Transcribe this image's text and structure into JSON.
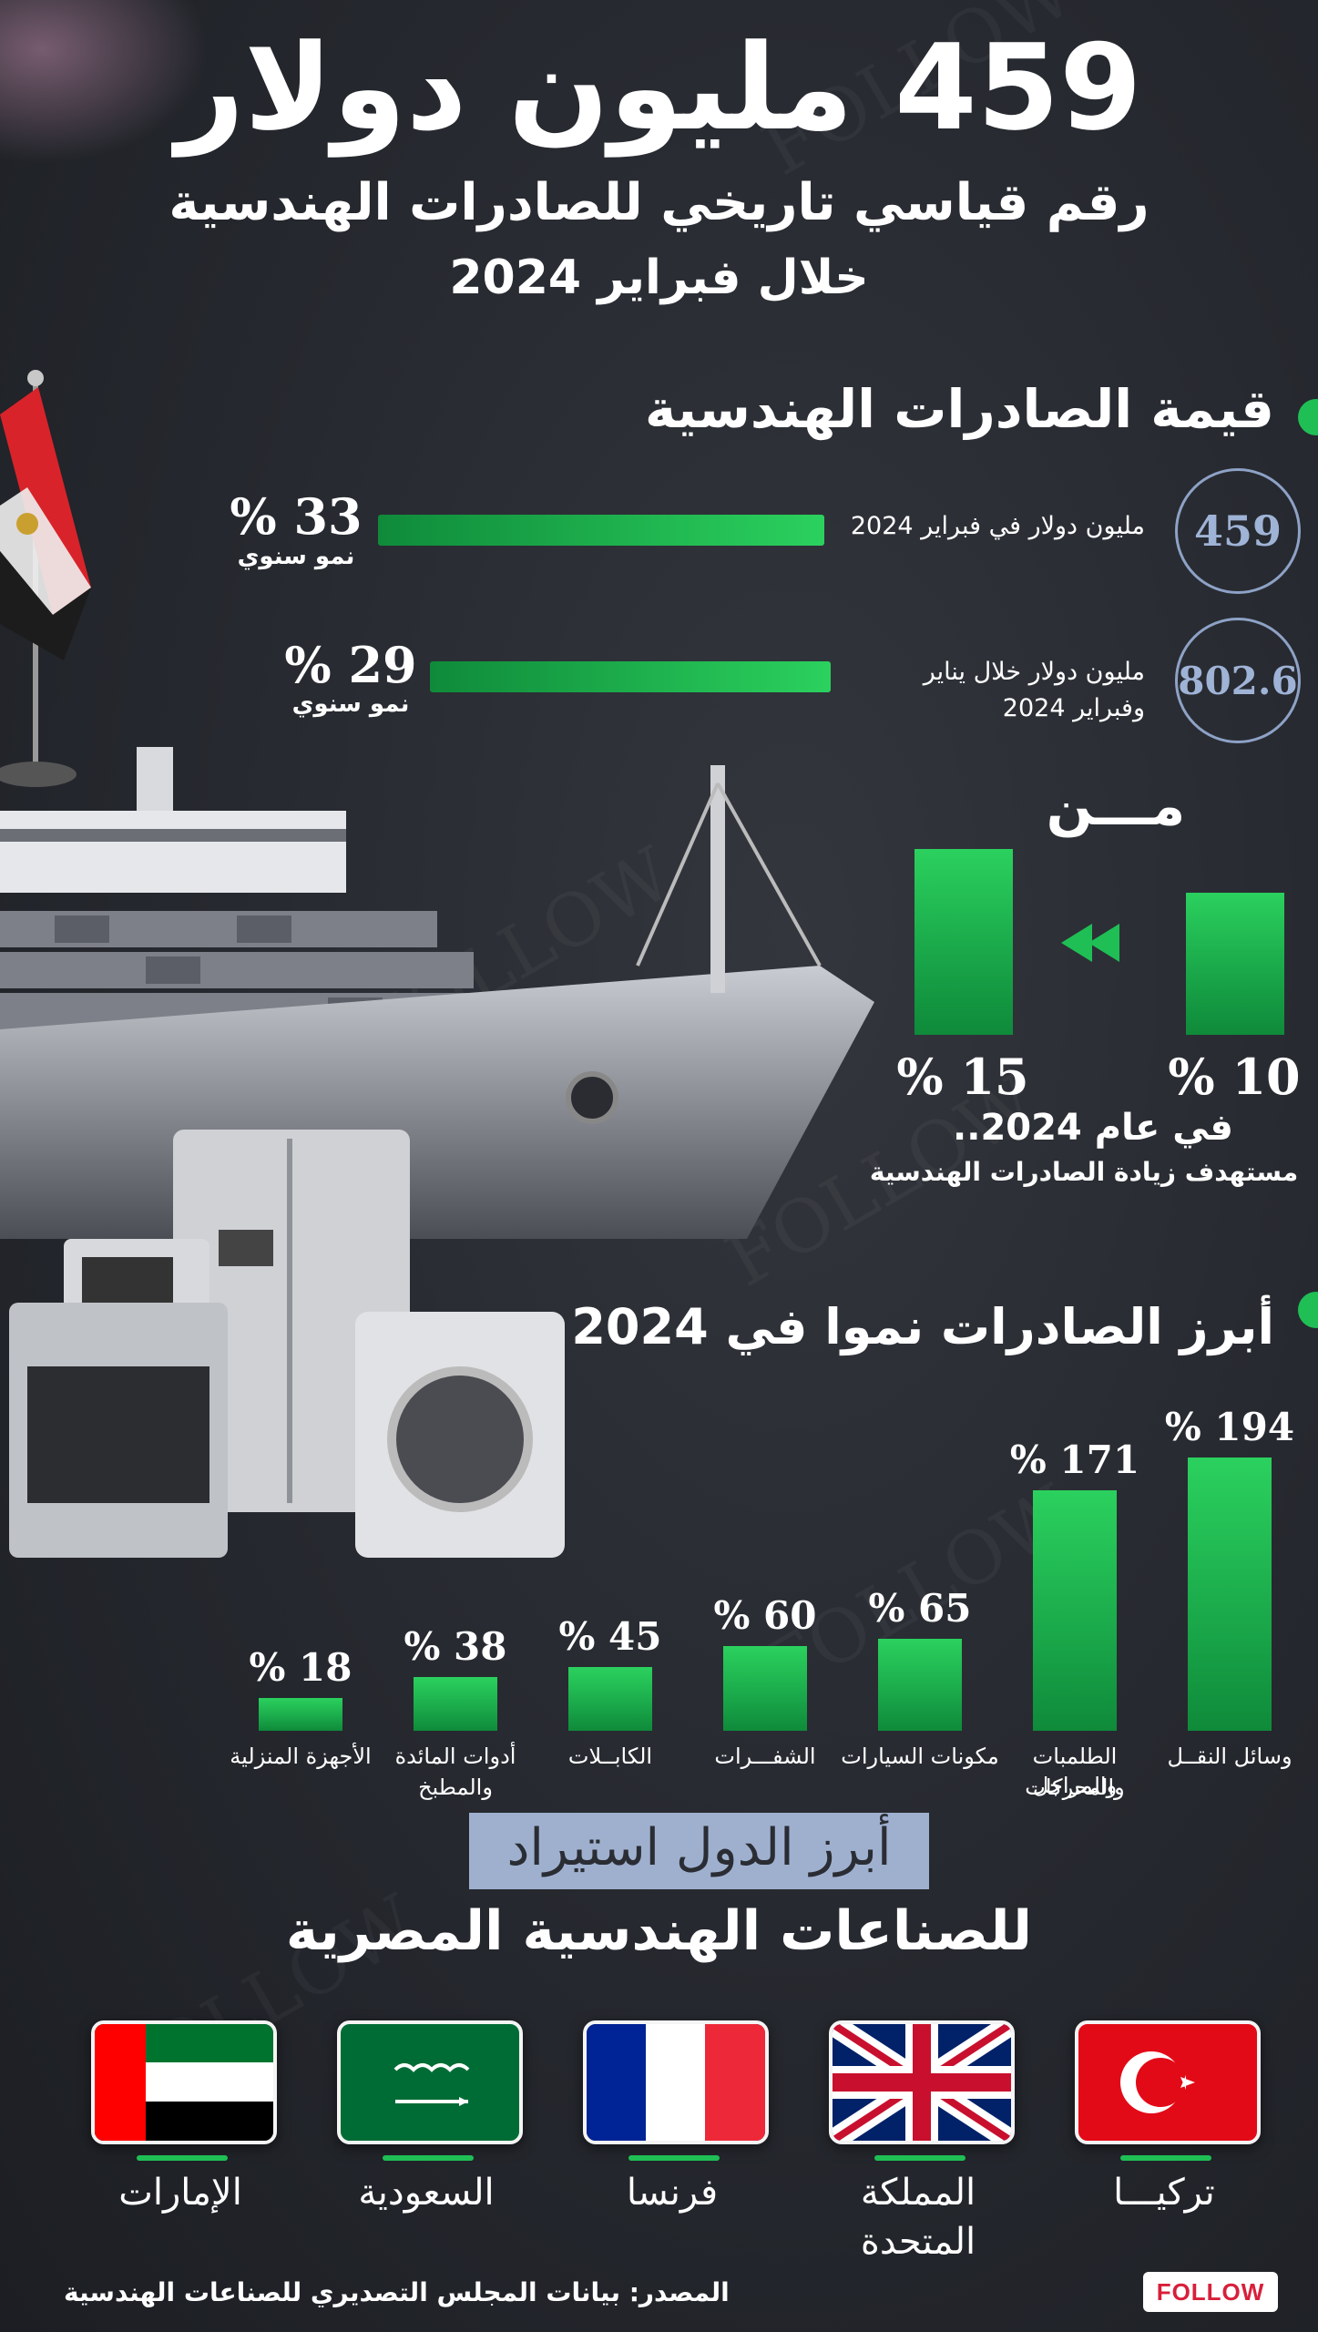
{
  "header": {
    "headline": "459 مليون دولار",
    "subtitle_line1": "رقم قياسي تاريخي للصادرات الهندسية",
    "subtitle_line2": "خلال فبراير 2024"
  },
  "value_section": {
    "title": "قيمة الصادرات الهندسية",
    "rows": [
      {
        "circle_value": "459",
        "description": "مليون دولار في فبراير 2024",
        "growth": "% 33",
        "growth_label": "نمو سنوي"
      },
      {
        "circle_value": "802.6",
        "description_line1": "مليون دولار خلال يناير",
        "description_line2": "وفبراير 2024",
        "growth": "% 29",
        "growth_label": "نمو سنوي"
      }
    ]
  },
  "target_section": {
    "from_label": "مـــن",
    "from_value": "% 10",
    "to_value": "% 15",
    "caption_line1": "في عام 2024..",
    "caption_line2": "مستهدف زيادة الصادرات الهندسية"
  },
  "growth_section": {
    "title": "أبرز الصادرات نموا في 2024"
  },
  "chart_data": {
    "type": "bar",
    "title": "أبرز الصادرات نموا في 2024",
    "categories": [
      {
        "label": "وسائل النقــل"
      },
      {
        "label_line1": "الطلمبات والمراجل",
        "label_line2": "والمحركات"
      },
      {
        "label": "مكونات السيارات"
      },
      {
        "label": "الشفـــرات"
      },
      {
        "label": "الكابــلات"
      },
      {
        "label_line1": "أدوات المائدة",
        "label_line2": "والمطبخ"
      },
      {
        "label": "الأجهزة المنزلية"
      }
    ],
    "values": [
      194,
      171,
      65,
      60,
      45,
      38,
      18
    ],
    "value_labels": [
      "% 194",
      "% 171",
      "% 65",
      "% 60",
      "% 45",
      "% 38",
      "% 18"
    ],
    "unit": "%",
    "xlabel": "",
    "ylabel": "",
    "ylim": [
      0,
      194
    ],
    "grid": false,
    "legend": "none",
    "bar_color": "#1fbf55"
  },
  "importers": {
    "title_line1": "أبرز الدول استيراد",
    "title_line2": "للصناعات الهندسية المصرية",
    "countries": [
      {
        "name": "تركيـــا",
        "flag": "turkey-flag"
      },
      {
        "name_line1": "المملكة",
        "name_line2": "المتحدة",
        "flag": "uk-flag"
      },
      {
        "name": "فرنسا",
        "flag": "france-flag"
      },
      {
        "name": "السعودية",
        "flag": "saudi-flag"
      },
      {
        "name": "الإمارات",
        "flag": "uae-flag"
      }
    ]
  },
  "footer": {
    "source": "المصدر: بيانات المجلس التصديري للصناعات الهندسية",
    "logo_text": "FOLLOW"
  },
  "colors": {
    "accent_green": "#1fbf55",
    "circle_border": "#8ea2c6",
    "banner_bg": "#9fb0cf"
  }
}
